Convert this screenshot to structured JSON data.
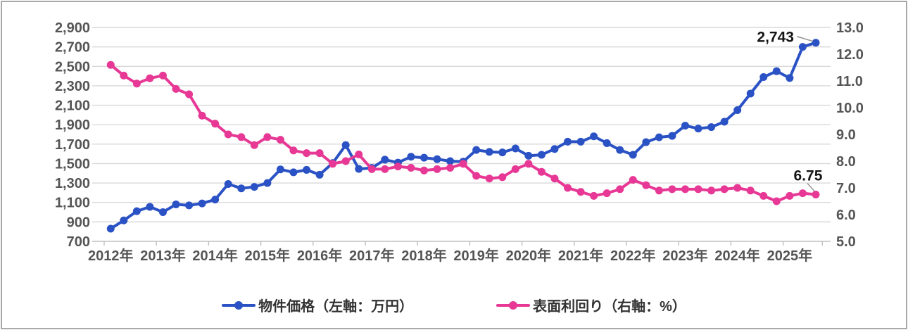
{
  "chart_data": {
    "type": "line",
    "title": "",
    "x_axis": {
      "year_labels": [
        "2012年",
        "2013年",
        "2014年",
        "2015年",
        "2016年",
        "2017年",
        "2018年",
        "2019年",
        "2020年",
        "2021年",
        "2022年",
        "2023年",
        "2024年",
        "2025年"
      ],
      "points_per_year": 4,
      "start": "2012Q1",
      "end": "2025Q3"
    },
    "left_axis": {
      "min": 700,
      "max": 2900,
      "step": 200,
      "labels": [
        "700",
        "900",
        "1,100",
        "1,300",
        "1,500",
        "1,700",
        "1,900",
        "2,100",
        "2,300",
        "2,500",
        "2,700",
        "2,900"
      ]
    },
    "right_axis": {
      "min": 5.0,
      "max": 13.0,
      "step": 1.0,
      "labels": [
        "5.0",
        "6.0",
        "7.0",
        "8.0",
        "9.0",
        "10.0",
        "11.0",
        "12.0",
        "13.0"
      ]
    },
    "grid": true,
    "legend_position": "bottom",
    "series": [
      {
        "name": "物件価格（左軸：万円）",
        "axis": "left",
        "color": "#2a52c5",
        "values": [
          830,
          915,
          1010,
          1055,
          1000,
          1080,
          1070,
          1090,
          1130,
          1290,
          1245,
          1260,
          1300,
          1440,
          1410,
          1435,
          1385,
          1505,
          1690,
          1445,
          1455,
          1540,
          1510,
          1570,
          1560,
          1545,
          1525,
          1520,
          1640,
          1620,
          1615,
          1655,
          1580,
          1590,
          1650,
          1725,
          1725,
          1780,
          1710,
          1640,
          1590,
          1720,
          1770,
          1785,
          1890,
          1860,
          1875,
          1930,
          2050,
          2220,
          2390,
          2450,
          2380,
          2700,
          2743
        ]
      },
      {
        "name": "表面利回り（右軸：%）",
        "axis": "right",
        "color": "#e73895",
        "values": [
          11.6,
          11.2,
          10.9,
          11.1,
          11.2,
          10.7,
          10.5,
          9.7,
          9.4,
          9.0,
          8.9,
          8.6,
          8.9,
          8.8,
          8.4,
          8.3,
          8.3,
          7.9,
          8.0,
          8.25,
          7.7,
          7.7,
          7.8,
          7.75,
          7.65,
          7.7,
          7.75,
          7.9,
          7.45,
          7.35,
          7.4,
          7.7,
          7.9,
          7.6,
          7.35,
          7.0,
          6.85,
          6.7,
          6.8,
          6.95,
          7.3,
          7.1,
          6.9,
          6.95,
          6.95,
          6.95,
          6.9,
          6.95,
          7.0,
          6.9,
          6.7,
          6.5,
          6.7,
          6.8,
          6.75
        ]
      }
    ],
    "annotations": [
      {
        "text": "2,743",
        "series": 0,
        "point": "last"
      },
      {
        "text": "6.75",
        "series": 1,
        "point": "last"
      }
    ]
  },
  "colors": {
    "grid": "#d9d9d9",
    "axis_line": "#c6c6c6",
    "tick": "#bfbfbf",
    "axis_text": "#555555",
    "legend_text": "#333333",
    "annotation_text": "#151515",
    "leader_line": "#999999",
    "frame_border": "#a9a9a9",
    "background": "#ffffff"
  }
}
